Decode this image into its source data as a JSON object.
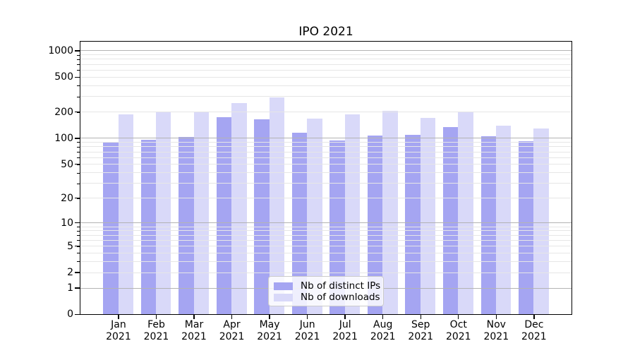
{
  "chart_data": {
    "type": "bar",
    "title": "IPO 2021",
    "xlabel": "",
    "ylabel": "",
    "categories": [
      {
        "month": "Jan",
        "year": "2021"
      },
      {
        "month": "Feb",
        "year": "2021"
      },
      {
        "month": "Mar",
        "year": "2021"
      },
      {
        "month": "Apr",
        "year": "2021"
      },
      {
        "month": "May",
        "year": "2021"
      },
      {
        "month": "Jun",
        "year": "2021"
      },
      {
        "month": "Jul",
        "year": "2021"
      },
      {
        "month": "Aug",
        "year": "2021"
      },
      {
        "month": "Sep",
        "year": "2021"
      },
      {
        "month": "Oct",
        "year": "2021"
      },
      {
        "month": "Nov",
        "year": "2021"
      },
      {
        "month": "Dec",
        "year": "2021"
      }
    ],
    "series": [
      {
        "name": "Nb of distinct IPs",
        "color": "#a5a5f2",
        "values": [
          91,
          95,
          103,
          173,
          163,
          116,
          93,
          106,
          109,
          133,
          104,
          92
        ]
      },
      {
        "name": "Nb of downloads",
        "color": "#d9d9f9",
        "values": [
          188,
          199,
          199,
          251,
          289,
          168,
          187,
          203,
          170,
          199,
          138,
          129
        ]
      }
    ],
    "yscale": "log10(value+1)",
    "ylim": [
      0,
      1300
    ],
    "yticks": [
      0,
      1,
      2,
      5,
      10,
      20,
      50,
      100,
      200,
      500,
      1000
    ],
    "grid": {
      "major": [
        1,
        10,
        100,
        1000
      ],
      "minor": [
        2,
        3,
        4,
        5,
        6,
        7,
        8,
        9,
        20,
        30,
        40,
        50,
        60,
        70,
        80,
        90,
        200,
        300,
        400,
        500,
        600,
        700,
        800,
        900
      ],
      "major_color": "#b3b3b3",
      "minor_color": "#e6e6e6"
    },
    "legend": {
      "position": "bottom-center"
    }
  }
}
